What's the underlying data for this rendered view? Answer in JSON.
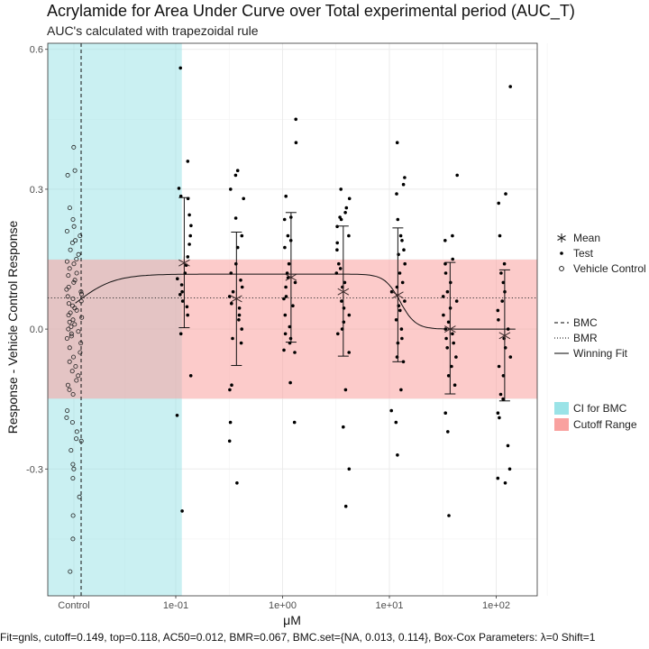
{
  "title": "Acrylamide for Area Under Curve over Total experimental period (AUC_T)",
  "subtitle": "AUC's calculated with trapezoidal rule",
  "footer": "Fit=gnls, cutoff=0.149, top=0.118, AC50=0.012, BMR=0.067, BMC.set={NA, 0.013, 0.114}, Box-Cox Parameters: λ=0 Shift=1",
  "legend": {
    "shapes": [
      {
        "label": "Mean",
        "icon": "asterisk"
      },
      {
        "label": "Test",
        "icon": "filled-dot"
      },
      {
        "label": "Vehicle Control",
        "icon": "open-circle"
      }
    ],
    "lines": [
      {
        "label": "BMC",
        "icon": "dashed-line"
      },
      {
        "label": "BMR",
        "icon": "dotted-line"
      },
      {
        "label": "Winning Fit",
        "icon": "solid-line"
      }
    ],
    "fills": [
      {
        "label": "CI for BMC",
        "color": "#9ae3e7"
      },
      {
        "label": "Cutoff Range",
        "color": "#f9a19f"
      }
    ]
  },
  "chart_data": {
    "type": "scatter",
    "xlabel": "μM",
    "ylabel": "Response - Vehicle Control Response",
    "x_scale": "log10",
    "x_ticks": [
      {
        "label": "Control",
        "value": null
      },
      {
        "label": "1e-01",
        "value": 0.1
      },
      {
        "label": "1e+00",
        "value": 1
      },
      {
        "label": "1e+01",
        "value": 10
      },
      {
        "label": "1e+02",
        "value": 100
      }
    ],
    "y_ticks": [
      {
        "label": "-0.3",
        "value": -0.3
      },
      {
        "label": "0.0",
        "value": 0.0
      },
      {
        "label": "0.3",
        "value": 0.3
      },
      {
        "label": "0.6",
        "value": 0.6
      }
    ],
    "ylim": [
      -0.572,
      0.613
    ],
    "grid": true,
    "legend_position": "right",
    "cutoff": 0.149,
    "bmr": 0.067,
    "bmc": 0.013,
    "bmc_ci": [
      0.0001,
      0.114
    ],
    "fit": {
      "model": "gnls",
      "top": 0.118,
      "ac50": 0.012,
      "loss_top": 0.0,
      "loss_ac50": 12.6
    },
    "means": [
      {
        "conc": 0.12,
        "mean": 0.142,
        "lower": 0.003,
        "upper": 0.282
      },
      {
        "conc": 0.37,
        "mean": 0.065,
        "lower": -0.078,
        "upper": 0.208
      },
      {
        "conc": 1.2,
        "mean": 0.111,
        "lower": -0.028,
        "upper": 0.25
      },
      {
        "conc": 3.7,
        "mean": 0.08,
        "lower": -0.058,
        "upper": 0.221
      },
      {
        "conc": 12,
        "mean": 0.073,
        "lower": -0.07,
        "upper": 0.217
      },
      {
        "conc": 37,
        "mean": 0.0,
        "lower": -0.139,
        "upper": 0.143
      },
      {
        "conc": 120,
        "mean": -0.014,
        "lower": -0.154,
        "upper": 0.127
      }
    ],
    "test_points": [
      {
        "conc": 0.12,
        "values": [
          0.56,
          0.36,
          0.302,
          0.285,
          0.28,
          0.245,
          0.222,
          0.2,
          0.182,
          0.155,
          0.137,
          0.12,
          0.108,
          0.095,
          0.08,
          0.074,
          0.06,
          0.048,
          0.03,
          -0.01,
          -0.1,
          -0.185,
          -0.39
        ]
      },
      {
        "conc": 0.37,
        "values": [
          0.34,
          0.33,
          0.3,
          0.28,
          0.238,
          0.2,
          0.175,
          0.14,
          0.12,
          0.105,
          0.09,
          0.08,
          0.07,
          0.055,
          0.045,
          0.03,
          0.02,
          0.0,
          -0.02,
          -0.03,
          -0.12,
          -0.13,
          -0.2,
          -0.24,
          -0.33
        ]
      },
      {
        "conc": 1.2,
        "values": [
          0.45,
          0.4,
          0.285,
          0.24,
          0.235,
          0.2,
          0.19,
          0.175,
          0.14,
          0.12,
          0.11,
          0.1,
          0.09,
          0.07,
          0.065,
          0.05,
          0.03,
          0.005,
          -0.01,
          -0.02,
          -0.03,
          -0.045,
          -0.05,
          -0.115,
          -0.2
        ]
      },
      {
        "conc": 3.7,
        "values": [
          0.3,
          0.28,
          0.26,
          0.25,
          0.24,
          0.235,
          0.22,
          0.2,
          0.185,
          0.17,
          0.14,
          0.13,
          0.12,
          0.1,
          0.09,
          0.06,
          0.045,
          0.03,
          0.015,
          0.0,
          -0.01,
          -0.05,
          -0.13,
          -0.21,
          -0.3,
          -0.38
        ]
      },
      {
        "conc": 12,
        "values": [
          0.4,
          0.325,
          0.31,
          0.29,
          0.235,
          0.2,
          0.19,
          0.17,
          0.16,
          0.14,
          0.12,
          0.1,
          0.09,
          0.08,
          0.06,
          0.05,
          0.04,
          0.02,
          0.0,
          -0.02,
          -0.03,
          -0.06,
          -0.07,
          -0.13,
          -0.175,
          -0.2,
          -0.27
        ]
      },
      {
        "conc": 37,
        "values": [
          0.33,
          0.2,
          0.19,
          0.15,
          0.14,
          0.12,
          0.1,
          0.08,
          0.07,
          0.06,
          0.045,
          0.03,
          0.015,
          0.0,
          -0.01,
          -0.02,
          -0.03,
          -0.04,
          -0.06,
          -0.08,
          -0.1,
          -0.12,
          -0.18,
          -0.22,
          -0.4
        ]
      },
      {
        "conc": 120,
        "values": [
          0.52,
          0.29,
          0.27,
          0.2,
          0.14,
          0.12,
          0.1,
          0.08,
          0.06,
          0.04,
          0.02,
          0.0,
          -0.02,
          -0.04,
          -0.06,
          -0.08,
          -0.1,
          -0.14,
          -0.15,
          -0.18,
          -0.19,
          -0.25,
          -0.3,
          -0.32,
          -0.33
        ]
      }
    ],
    "vehicle_control": [
      0.39,
      0.34,
      0.33,
      0.26,
      0.235,
      0.22,
      0.21,
      0.2,
      0.19,
      0.185,
      0.17,
      0.16,
      0.15,
      0.145,
      0.14,
      0.13,
      0.12,
      0.115,
      0.105,
      0.1,
      0.09,
      0.085,
      0.08,
      0.075,
      0.07,
      0.065,
      0.06,
      0.055,
      0.05,
      0.045,
      0.04,
      0.035,
      0.03,
      0.025,
      0.02,
      0.015,
      0.01,
      0.005,
      0.0,
      -0.005,
      -0.01,
      -0.015,
      -0.02,
      -0.03,
      -0.04,
      -0.05,
      -0.06,
      -0.07,
      -0.08,
      -0.09,
      -0.1,
      -0.11,
      -0.12,
      -0.13,
      -0.14,
      -0.175,
      -0.19,
      -0.2,
      -0.22,
      -0.235,
      -0.24,
      -0.26,
      -0.29,
      -0.3,
      -0.32,
      -0.36,
      -0.4,
      -0.45,
      -0.52
    ]
  }
}
